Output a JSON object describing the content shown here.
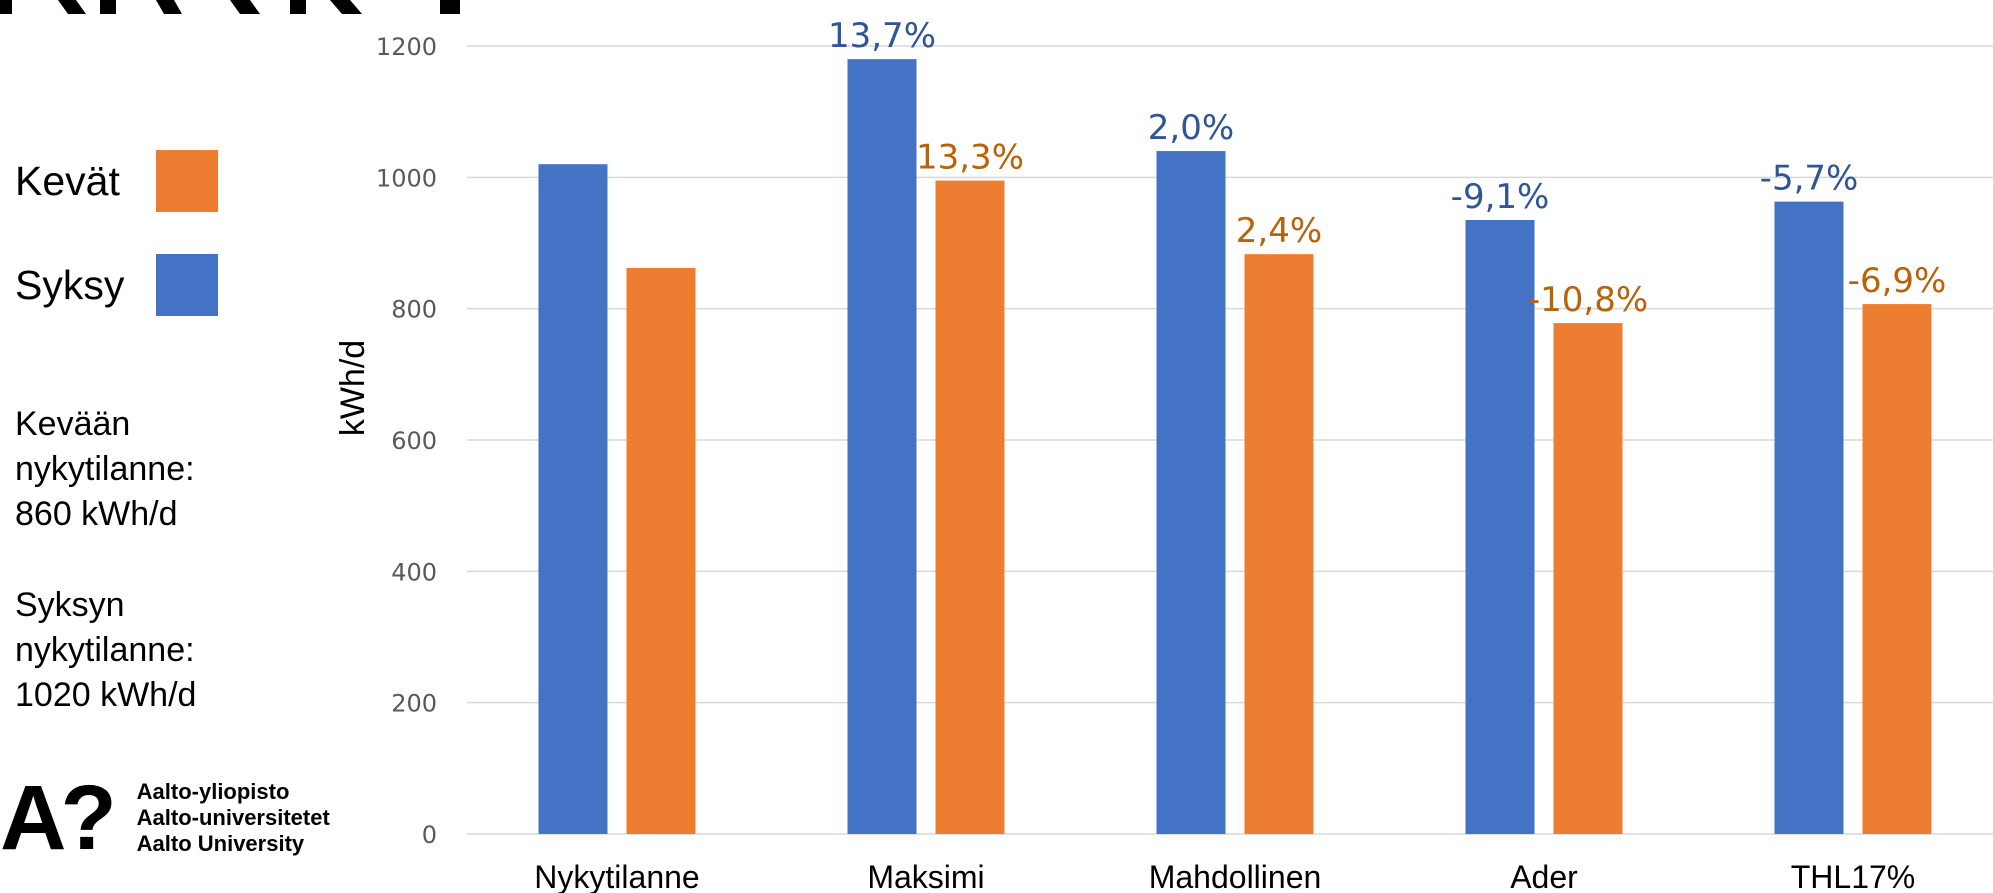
{
  "legend": {
    "items": [
      {
        "label": "Kevät",
        "color": "#ED7D31"
      },
      {
        "label": "Syksy",
        "color": "#4472C4"
      }
    ]
  },
  "notes": {
    "spring": "Kevään\nnykytilanne:\n860 kWh/d",
    "autumn": "Syksyn\nnykytilanne:\n1020 kWh/d"
  },
  "logo": {
    "mark": "A?",
    "lines": [
      "Aalto-yliopisto",
      "Aalto-universitetet",
      "Aalto University"
    ]
  },
  "chart_data": {
    "type": "bar",
    "categories": [
      "Nykytilanne",
      "Maksimi",
      "Mahdollinen",
      "Ader",
      "THL17%"
    ],
    "series": [
      {
        "name": "Syksy",
        "color": "#4472C4",
        "label_color": "#2F5597",
        "values": [
          1020,
          1180,
          1040,
          935,
          963
        ],
        "labels": [
          "",
          "13,7%",
          "2,0%",
          "-9,1%",
          "-5,7%"
        ]
      },
      {
        "name": "Kevät",
        "color": "#ED7D31",
        "label_color": "#B8620A",
        "values": [
          862,
          995,
          883,
          778,
          807
        ],
        "labels": [
          "",
          "13,3%",
          "2,4%",
          "-10,8%",
          "-6,9%"
        ]
      }
    ],
    "ylabel": "kWh/d",
    "ylim": [
      0,
      1200
    ],
    "yticks": [
      0,
      200,
      400,
      600,
      800,
      1000,
      1200
    ],
    "grid": true
  }
}
